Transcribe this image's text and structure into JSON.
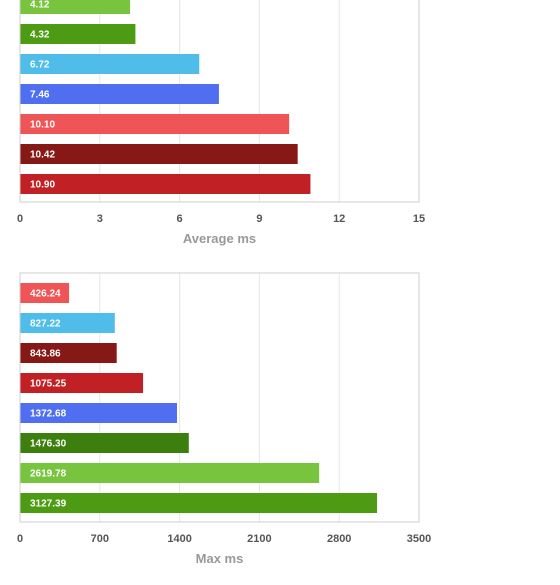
{
  "chart_data": [
    {
      "type": "bar",
      "orientation": "horizontal",
      "xlabel": "Average ms",
      "xlim": [
        0,
        15
      ],
      "ticks": [
        "0",
        "3",
        "6",
        "9",
        "12",
        "15"
      ],
      "grid": true,
      "bars": [
        {
          "label": "4.12",
          "value": 4.12,
          "color": "#79c43f"
        },
        {
          "label": "4.32",
          "value": 4.32,
          "color": "#4d9b13"
        },
        {
          "label": "6.72",
          "value": 6.72,
          "color": "#4fbce9"
        },
        {
          "label": "7.46",
          "value": 7.46,
          "color": "#4f6ff0"
        },
        {
          "label": "10.10",
          "value": 10.1,
          "color": "#ef5456"
        },
        {
          "label": "10.42",
          "value": 10.42,
          "color": "#861816"
        },
        {
          "label": "10.90",
          "value": 10.9,
          "color": "#c12124"
        }
      ]
    },
    {
      "type": "bar",
      "orientation": "horizontal",
      "xlabel": "Max ms",
      "xlim": [
        0,
        3500
      ],
      "ticks": [
        "0",
        "700",
        "1400",
        "2100",
        "2800",
        "3500"
      ],
      "grid": true,
      "bars": [
        {
          "label": "426.24",
          "value": 426.24,
          "color": "#ef5456"
        },
        {
          "label": "827.22",
          "value": 827.22,
          "color": "#4fbce9"
        },
        {
          "label": "843.86",
          "value": 843.86,
          "color": "#861816"
        },
        {
          "label": "1075.25",
          "value": 1075.25,
          "color": "#c12124"
        },
        {
          "label": "1372.68",
          "value": 1372.68,
          "color": "#4f6ff0"
        },
        {
          "label": "1476.30",
          "value": 1476.3,
          "color": "#3c7f0e"
        },
        {
          "label": "2619.78",
          "value": 2619.78,
          "color": "#79c43f"
        },
        {
          "label": "3127.39",
          "value": 3127.39,
          "color": "#4d9b13"
        }
      ]
    }
  ],
  "colors": {
    "grid": "#e6e6e6",
    "frame": "#cfcfcf",
    "tick_text": "#555555",
    "axis_title": "#999999",
    "bar_label": "#ffffff"
  }
}
